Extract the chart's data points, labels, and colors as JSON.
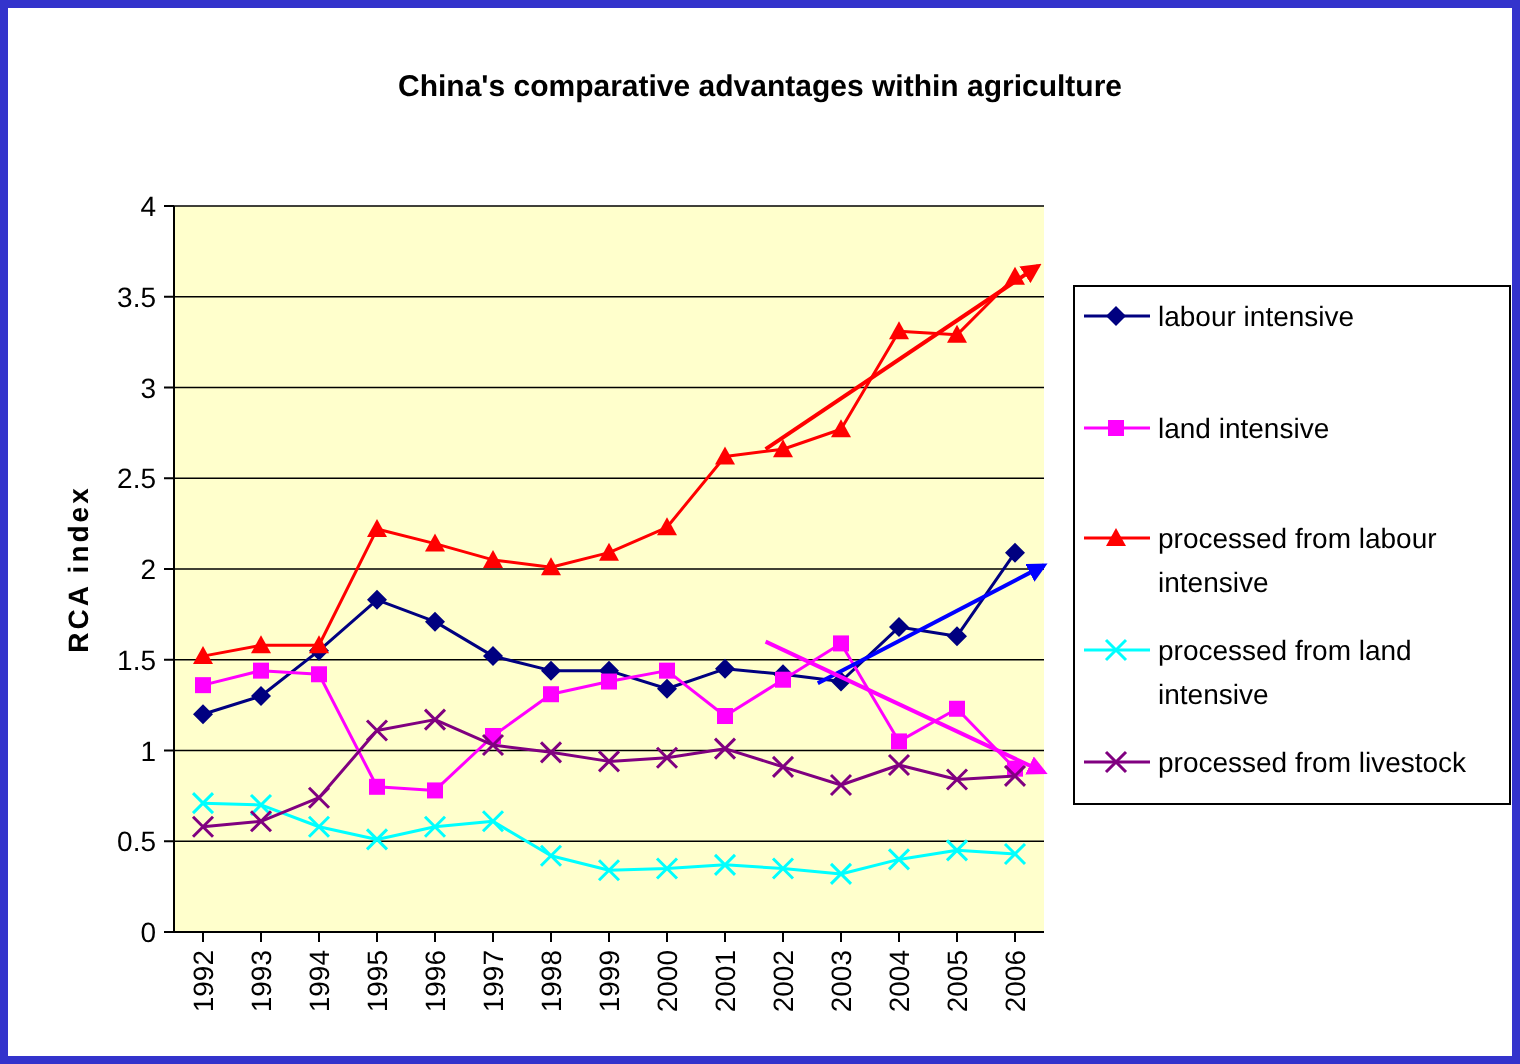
{
  "chart_data": {
    "type": "line",
    "title": "China's comparative advantages within agriculture",
    "ylabel": "RCA index",
    "x": [
      1992,
      1993,
      1994,
      1995,
      1996,
      1997,
      1998,
      1999,
      2000,
      2001,
      2002,
      2003,
      2004,
      2005,
      2006
    ],
    "xlim": [
      1991.5,
      2006.5
    ],
    "xticks": [
      1992,
      1993,
      1994,
      1995,
      1996,
      1997,
      1998,
      1999,
      2000,
      2001,
      2002,
      2003,
      2004,
      2005,
      2006
    ],
    "ylim": [
      0,
      4
    ],
    "yticks": [
      0,
      0.5,
      1,
      1.5,
      2,
      2.5,
      3,
      3.5,
      4
    ],
    "grid": "y",
    "legend": "right",
    "line_style": "solid",
    "series": [
      {
        "name": "labour intensive",
        "color": "#000080",
        "marker": "diamond",
        "values": [
          1.2,
          1.3,
          1.55,
          1.83,
          1.71,
          1.52,
          1.44,
          1.44,
          1.34,
          1.45,
          1.42,
          1.38,
          1.68,
          1.63,
          2.09
        ]
      },
      {
        "name": "land intensive",
        "color": "#ff00ff",
        "marker": "square",
        "values": [
          1.36,
          1.44,
          1.42,
          0.8,
          0.78,
          1.08,
          1.31,
          1.38,
          1.44,
          1.19,
          1.39,
          1.59,
          1.05,
          1.23,
          0.9
        ]
      },
      {
        "name": "processed from labour intensive",
        "color": "#ff0000",
        "marker": "triangle",
        "values": [
          1.52,
          1.58,
          1.58,
          2.22,
          2.14,
          2.05,
          2.01,
          2.09,
          2.23,
          2.62,
          2.66,
          2.77,
          3.31,
          3.29,
          3.61
        ]
      },
      {
        "name": "processed from land intensive",
        "color": "#00ffff",
        "marker": "cross",
        "values": [
          0.71,
          0.7,
          0.58,
          0.51,
          0.58,
          0.61,
          0.42,
          0.34,
          0.35,
          0.37,
          0.35,
          0.32,
          0.4,
          0.45,
          0.43
        ]
      },
      {
        "name": "processed from livestock",
        "color": "#800080",
        "marker": "cross",
        "values": [
          0.58,
          0.61,
          0.74,
          1.11,
          1.17,
          1.03,
          0.99,
          0.94,
          0.96,
          1.01,
          0.91,
          0.81,
          0.92,
          0.84,
          0.86
        ]
      },
      {
        "type": "line",
        "color": "#ff0000",
        "marker": "none",
        "x": [
          2001.7,
          2006.4
        ],
        "values": [
          2.66,
          3.67
        ]
      },
      {
        "type": "line",
        "color": "#0000ff",
        "marker": "none",
        "x": [
          2002.6,
          2006.5
        ],
        "values": [
          1.37,
          2.02
        ]
      },
      {
        "type": "line",
        "color": "#ff00ff",
        "marker": "none",
        "x": [
          2001.7,
          2006.5
        ],
        "values": [
          1.6,
          0.88
        ]
      }
    ]
  }
}
